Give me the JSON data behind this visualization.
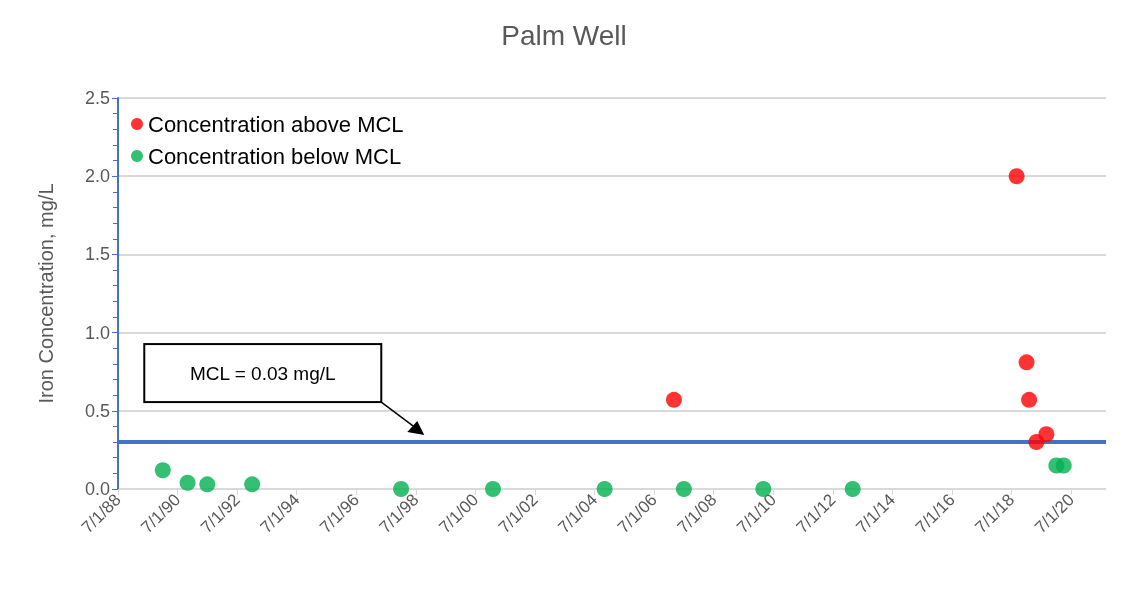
{
  "chart_data": {
    "type": "scatter",
    "title": "Palm Well",
    "ylabel": "Iron Concentration, mg/L",
    "series": [
      {
        "name": "Concentration above MCL",
        "color": "#ff0000",
        "x": [
          "2007-03",
          "2018-09",
          "2019-01",
          "2019-02",
          "2019-05",
          "2019-09"
        ],
        "values": [
          0.57,
          2.0,
          0.81,
          0.57,
          0.3,
          0.35
        ]
      },
      {
        "name": "Concentration below MCL",
        "color": "#00b050",
        "x": [
          "1990-01",
          "1990-11",
          "1991-07",
          "1993-01",
          "1998-01",
          "2001-02",
          "2004-11",
          "2007-07",
          "2010-03",
          "2013-03",
          "2020-01",
          "2020-04"
        ],
        "values": [
          0.12,
          0.04,
          0.03,
          0.03,
          0,
          0,
          0,
          0,
          0,
          0,
          0.15,
          0.15
        ]
      }
    ],
    "ref_lines": [
      {
        "axis": "y",
        "value": 0.3,
        "color": "#4472c4"
      }
    ],
    "annotations": [
      "MCL = 0.03 mg/L"
    ],
    "xlim": [
      "1988-07-01",
      "2021-09-01"
    ],
    "xticks": [
      {
        "value": "1988-07-01",
        "label": "7/1/88"
      },
      {
        "value": "1990-07-01",
        "label": "7/1/90"
      },
      {
        "value": "1992-07-01",
        "label": "7/1/92"
      },
      {
        "value": "1994-07-01",
        "label": "7/1/94"
      },
      {
        "value": "1996-07-01",
        "label": "7/1/96"
      },
      {
        "value": "1998-07-01",
        "label": "7/1/98"
      },
      {
        "value": "2000-07-01",
        "label": "7/1/00"
      },
      {
        "value": "2002-07-01",
        "label": "7/1/02"
      },
      {
        "value": "2004-07-01",
        "label": "7/1/04"
      },
      {
        "value": "2006-07-01",
        "label": "7/1/06"
      },
      {
        "value": "2008-07-01",
        "label": "7/1/08"
      },
      {
        "value": "2010-07-01",
        "label": "7/1/10"
      },
      {
        "value": "2012-07-01",
        "label": "7/1/12"
      },
      {
        "value": "2014-07-01",
        "label": "7/1/14"
      },
      {
        "value": "2016-07-01",
        "label": "7/1/16"
      },
      {
        "value": "2018-07-01",
        "label": "7/1/18"
      },
      {
        "value": "2020-07-01",
        "label": "7/1/20"
      }
    ],
    "ylim": [
      0,
      2.5
    ],
    "yticks": [
      {
        "value": 0,
        "label": "0.0"
      },
      0.5,
      {
        "value": 1,
        "label": "1.0"
      },
      1.5,
      {
        "value": 2,
        "label": "2.0"
      },
      2.5
    ],
    "grid": "y",
    "legend": "top left",
    "marker": "circle"
  }
}
